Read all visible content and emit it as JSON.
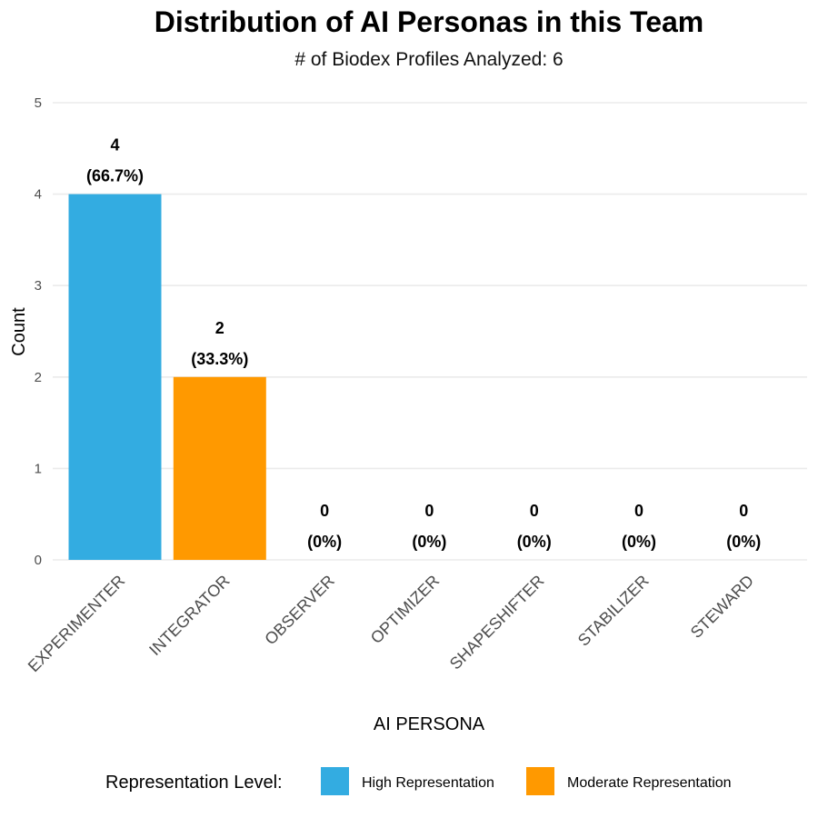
{
  "chart_data": {
    "type": "bar",
    "title": "Distribution of AI Personas in this Team",
    "subtitle": "# of Biodex Profiles Analyzed: 6",
    "xlabel": "AI PERSONA",
    "ylabel": "Count",
    "ylim": [
      0,
      5
    ],
    "yticks": [
      "0",
      "1",
      "2",
      "3",
      "4",
      "5"
    ],
    "grid": true,
    "categories": [
      "EXPERIMENTER",
      "INTEGRATOR",
      "OBSERVER",
      "OPTIMIZER",
      "SHAPESHIFTER",
      "STABILIZER",
      "STEWARD"
    ],
    "values": [
      4,
      2,
      0,
      0,
      0,
      0,
      0
    ],
    "data_labels": [
      {
        "count": "4",
        "pct": "(66.7%)"
      },
      {
        "count": "2",
        "pct": "(33.3%)"
      },
      {
        "count": "0",
        "pct": "(0%)"
      },
      {
        "count": "0",
        "pct": "(0%)"
      },
      {
        "count": "0",
        "pct": "(0%)"
      },
      {
        "count": "0",
        "pct": "(0%)"
      },
      {
        "count": "0",
        "pct": "(0%)"
      }
    ],
    "levels": [
      "High Representation",
      "Moderate Representation",
      null,
      null,
      null,
      null,
      null
    ],
    "legend": {
      "title": "Representation Level:",
      "position": "bottom",
      "items": [
        {
          "label": "High Representation",
          "color": "#33ACE1"
        },
        {
          "label": "Moderate Representation",
          "color": "#FF9900"
        }
      ]
    }
  }
}
